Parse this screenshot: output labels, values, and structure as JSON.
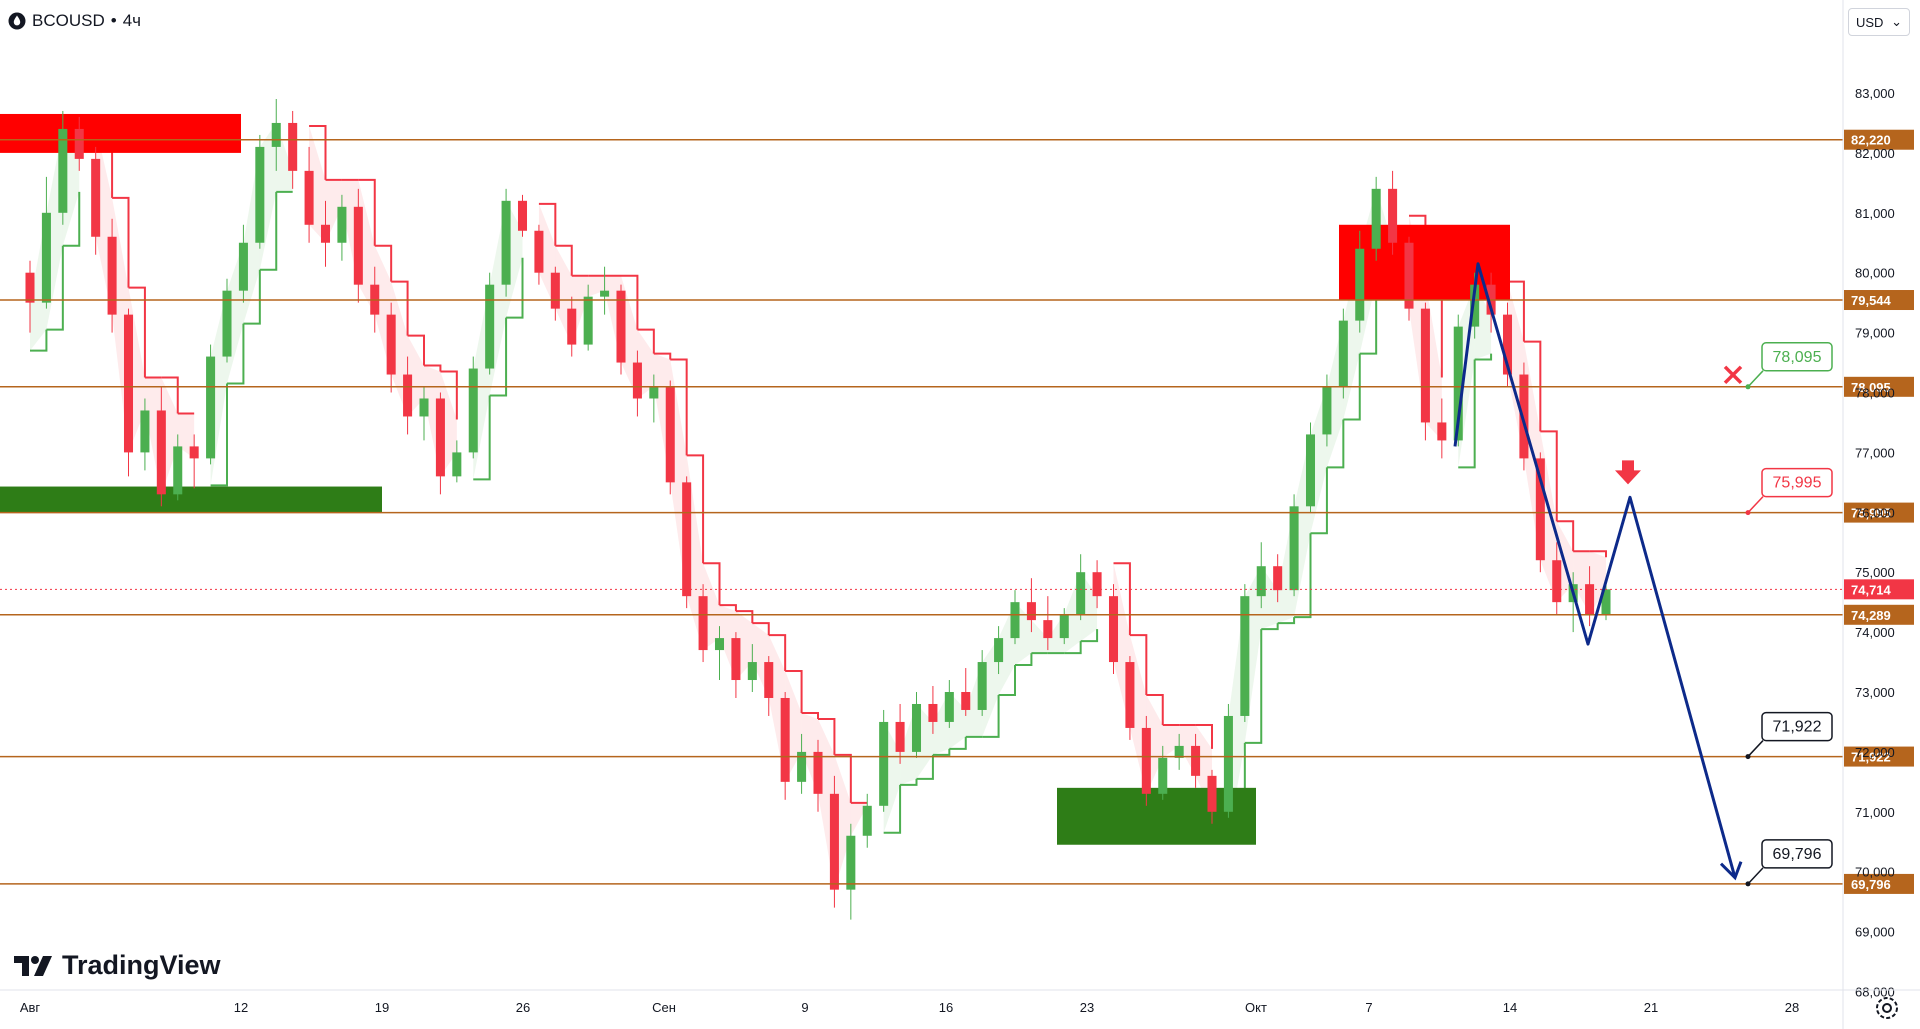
{
  "header": {
    "symbol": "BCOUSD",
    "separator": "•",
    "timeframe": "4ч"
  },
  "currency_selector": {
    "value": "USD"
  },
  "branding": {
    "logo_text": "TradingView"
  },
  "colors": {
    "up": "#4caf50",
    "down": "#f23645",
    "level": "#b5651d",
    "zone_red": "#ff0000",
    "zone_green": "#2e7d17",
    "projection": "#0d2a8a",
    "trail_red": "#f23645",
    "trail_green": "#4caf50"
  },
  "chart_data": {
    "type": "candlestick",
    "symbol": "BCOUSD",
    "timeframe": "4ч",
    "y_axis": {
      "min": 68000,
      "max": 83000,
      "ticks": [
        "68,000",
        "69,000",
        "70,000",
        "71,000",
        "72,000",
        "73,000",
        "74,000",
        "75,000",
        "76,000",
        "77,000",
        "78,000",
        "79,000",
        "80,000",
        "81,000",
        "82,000",
        "83,000"
      ]
    },
    "x_axis": {
      "ticks": [
        "Авг",
        "12",
        "19",
        "26",
        "Сен",
        "9",
        "16",
        "23",
        "Окт",
        "7",
        "14",
        "21",
        "28"
      ]
    },
    "current_price": {
      "value": 74714,
      "label": "74,714"
    },
    "levels": [
      {
        "value": 82220,
        "label": "82,220"
      },
      {
        "value": 79544,
        "label": "79,544"
      },
      {
        "value": 78095,
        "label": "78,095"
      },
      {
        "value": 75995,
        "label": "75,995"
      },
      {
        "value": 74289,
        "label": "74,289"
      },
      {
        "value": 71922,
        "label": "71,922"
      },
      {
        "value": 69796,
        "label": "69,796"
      }
    ],
    "annotations": [
      {
        "label": "78,095",
        "value": 78095,
        "style": "green",
        "marker": "cross"
      },
      {
        "label": "75,995",
        "value": 75995,
        "style": "red",
        "marker": "down-arrow"
      },
      {
        "label": "71,922",
        "value": 71922,
        "style": "black"
      },
      {
        "label": "69,796",
        "value": 69796,
        "style": "black"
      }
    ],
    "zones": [
      {
        "kind": "supply",
        "from": "Авг",
        "to": "12",
        "low": 82000,
        "high": 82650
      },
      {
        "kind": "demand",
        "from": "Авг",
        "to": "19",
        "low": 75990,
        "high": 76430
      },
      {
        "kind": "demand",
        "from": "23",
        "to": "Окт",
        "low": 70450,
        "high": 71400
      },
      {
        "kind": "supply",
        "from": "7",
        "to": "14",
        "low": 79550,
        "high": 80800
      }
    ],
    "projection": [
      {
        "x": "7",
        "y": 77100
      },
      {
        "x": "14",
        "y": 80150
      },
      {
        "x": "14",
        "y": 73800
      },
      {
        "x": "21",
        "y": 76250
      },
      {
        "x": "28",
        "y": 69900
      }
    ],
    "series": [
      {
        "type": "ohlc",
        "points": [
          [
            80000,
            80200,
            79000,
            79500
          ],
          [
            79500,
            81600,
            79400,
            81000
          ],
          [
            81000,
            82700,
            80800,
            82400
          ],
          [
            82400,
            82600,
            81700,
            81900
          ],
          [
            81900,
            82100,
            80300,
            80600
          ],
          [
            80600,
            80900,
            79000,
            79300
          ],
          [
            79300,
            79400,
            76600,
            77000
          ],
          [
            77000,
            77900,
            76700,
            77700
          ],
          [
            77700,
            78100,
            76100,
            76300
          ],
          [
            76300,
            77300,
            76200,
            77100
          ],
          [
            77100,
            77300,
            76400,
            76900
          ],
          [
            76900,
            78800,
            76800,
            78600
          ],
          [
            78600,
            79900,
            78500,
            79700
          ],
          [
            79700,
            80800,
            79500,
            80500
          ],
          [
            80500,
            82300,
            80400,
            82100
          ],
          [
            82100,
            82900,
            81700,
            82500
          ],
          [
            82500,
            82700,
            81400,
            81700
          ],
          [
            81700,
            82100,
            80500,
            80800
          ],
          [
            80800,
            81200,
            80100,
            80500
          ],
          [
            80500,
            81300,
            80200,
            81100
          ],
          [
            81100,
            81400,
            79500,
            79800
          ],
          [
            79800,
            80100,
            79000,
            79300
          ],
          [
            79300,
            79500,
            78000,
            78300
          ],
          [
            78300,
            78600,
            77300,
            77600
          ],
          [
            77600,
            78100,
            77200,
            77900
          ],
          [
            77900,
            78000,
            76300,
            76600
          ],
          [
            76600,
            77200,
            76500,
            77000
          ],
          [
            77000,
            78600,
            76900,
            78400
          ],
          [
            78400,
            80000,
            78300,
            79800
          ],
          [
            79800,
            81400,
            79600,
            81200
          ],
          [
            81200,
            81300,
            80600,
            80700
          ],
          [
            80700,
            80800,
            79800,
            80000
          ],
          [
            80000,
            80100,
            79200,
            79400
          ],
          [
            79400,
            79600,
            78600,
            78800
          ],
          [
            78800,
            79800,
            78700,
            79600
          ],
          [
            79600,
            80100,
            79300,
            79700
          ],
          [
            79700,
            79800,
            78300,
            78500
          ],
          [
            78500,
            78700,
            77600,
            77900
          ],
          [
            77900,
            78300,
            77500,
            78100
          ],
          [
            78100,
            78200,
            76300,
            76500
          ],
          [
            76500,
            76600,
            74400,
            74600
          ],
          [
            74600,
            74800,
            73500,
            73700
          ],
          [
            73700,
            74100,
            73200,
            73900
          ],
          [
            73900,
            74000,
            72900,
            73200
          ],
          [
            73200,
            73800,
            73000,
            73500
          ],
          [
            73500,
            73600,
            72600,
            72900
          ],
          [
            72900,
            73000,
            71200,
            71500
          ],
          [
            71500,
            72300,
            71300,
            72000
          ],
          [
            72000,
            72200,
            71000,
            71300
          ],
          [
            71300,
            71600,
            69400,
            69700
          ],
          [
            69700,
            70800,
            69200,
            70600
          ],
          [
            70600,
            71300,
            70400,
            71100
          ],
          [
            71100,
            72700,
            71000,
            72500
          ],
          [
            72500,
            72800,
            71800,
            72000
          ],
          [
            72000,
            73000,
            71900,
            72800
          ],
          [
            72800,
            73100,
            72300,
            72500
          ],
          [
            72500,
            73200,
            72400,
            73000
          ],
          [
            73000,
            73400,
            72600,
            72700
          ],
          [
            72700,
            73700,
            72600,
            73500
          ],
          [
            73500,
            74100,
            73300,
            73900
          ],
          [
            73900,
            74700,
            73800,
            74500
          ],
          [
            74500,
            74900,
            74000,
            74200
          ],
          [
            74200,
            74600,
            73700,
            73900
          ],
          [
            73900,
            74400,
            73800,
            74300
          ],
          [
            74300,
            75300,
            74200,
            75000
          ],
          [
            75000,
            75200,
            74400,
            74600
          ],
          [
            74600,
            74800,
            73300,
            73500
          ],
          [
            73500,
            73600,
            72200,
            72400
          ],
          [
            72400,
            72600,
            71100,
            71300
          ],
          [
            71300,
            72100,
            71200,
            71900
          ],
          [
            71900,
            72300,
            71700,
            72100
          ],
          [
            72100,
            72300,
            71400,
            71600
          ],
          [
            71600,
            71700,
            70800,
            71000
          ],
          [
            71000,
            72800,
            70900,
            72600
          ],
          [
            72600,
            74800,
            72500,
            74600
          ],
          [
            74600,
            75500,
            74400,
            75100
          ],
          [
            75100,
            75300,
            74500,
            74700
          ],
          [
            74700,
            76300,
            74600,
            76100
          ],
          [
            76100,
            77500,
            76000,
            77300
          ],
          [
            77300,
            78300,
            77100,
            78100
          ],
          [
            78100,
            79400,
            77900,
            79200
          ],
          [
            79200,
            80700,
            79000,
            80400
          ],
          [
            80400,
            81600,
            80200,
            81400
          ],
          [
            81400,
            81700,
            80300,
            80500
          ],
          [
            80500,
            80600,
            79200,
            79400
          ],
          [
            79400,
            79500,
            77200,
            77500
          ],
          [
            77500,
            77900,
            76900,
            77200
          ],
          [
            77200,
            79300,
            77100,
            79100
          ],
          [
            79100,
            80000,
            78900,
            79800
          ],
          [
            79800,
            80000,
            79000,
            79300
          ],
          [
            79300,
            79500,
            78100,
            78300
          ],
          [
            78300,
            78500,
            76700,
            76900
          ],
          [
            76900,
            77000,
            75000,
            75200
          ],
          [
            75200,
            75500,
            74300,
            74500
          ],
          [
            74500,
            75000,
            74000,
            74800
          ],
          [
            74800,
            75100,
            74100,
            74300
          ],
          [
            74300,
            74900,
            74200,
            74714
          ]
        ]
      }
    ]
  }
}
